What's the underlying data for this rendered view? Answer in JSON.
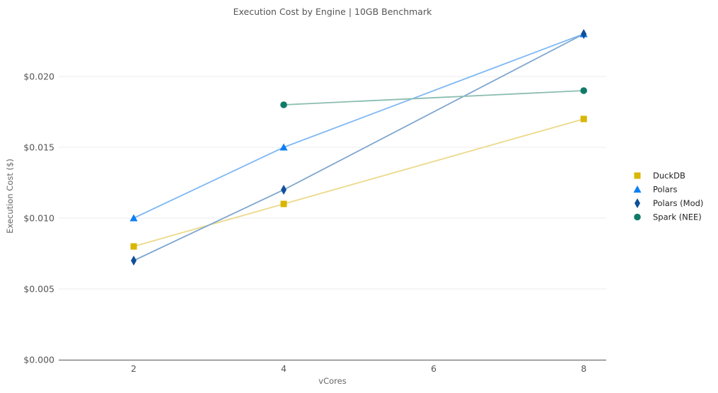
{
  "chart_data": {
    "type": "line",
    "title": "Execution Cost by Engine | 10GB Benchmark",
    "xlabel": "vCores",
    "ylabel": "Execution Cost ($)",
    "x_ticks": [
      "2",
      "4",
      "6",
      "8"
    ],
    "y_ticks": [
      "$0.000",
      "$0.005",
      "$0.010",
      "$0.015",
      "$0.020"
    ],
    "xlim": [
      1,
      8.3
    ],
    "ylim": [
      0,
      0.0239
    ],
    "grid": "horizontal",
    "legend_position": "right",
    "series": [
      {
        "name": "DuckDB",
        "marker": "square",
        "color": "#d9b600",
        "line_color": "#ecd98a",
        "points": [
          {
            "x": 2,
            "y": 0.008
          },
          {
            "x": 4,
            "y": 0.011
          },
          {
            "x": 8,
            "y": 0.017
          }
        ]
      },
      {
        "name": "Polars",
        "marker": "triangle",
        "color": "#0d7ef5",
        "line_color": "#7fb8f4",
        "points": [
          {
            "x": 2,
            "y": 0.01
          },
          {
            "x": 4,
            "y": 0.015
          },
          {
            "x": 8,
            "y": 0.023
          }
        ]
      },
      {
        "name": "Polars (Mod)",
        "marker": "diamond",
        "color": "#0f4f9a",
        "line_color": "#7fa6cf",
        "points": [
          {
            "x": 2,
            "y": 0.007
          },
          {
            "x": 4,
            "y": 0.012
          },
          {
            "x": 8,
            "y": 0.023
          }
        ]
      },
      {
        "name": "Spark (NEE)",
        "marker": "circle",
        "color": "#107a68",
        "line_color": "#8bbdb0",
        "points": [
          {
            "x": 4,
            "y": 0.018
          },
          {
            "x": 8,
            "y": 0.019
          }
        ]
      }
    ]
  }
}
